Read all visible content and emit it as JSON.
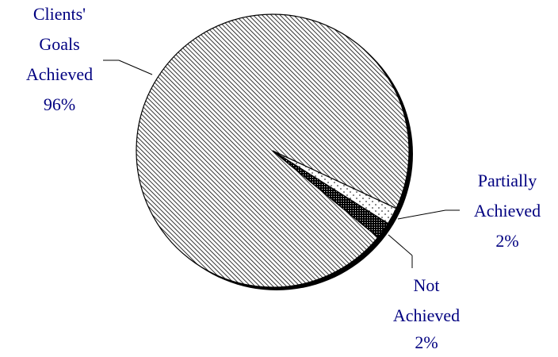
{
  "chart_data": {
    "type": "pie",
    "categories": [
      "Clients' Goals Achieved",
      "Partially Achieved",
      "Not Achieved"
    ],
    "values": [
      96,
      2,
      2
    ],
    "value_labels": [
      "96%",
      "2%",
      "2%"
    ]
  }
}
